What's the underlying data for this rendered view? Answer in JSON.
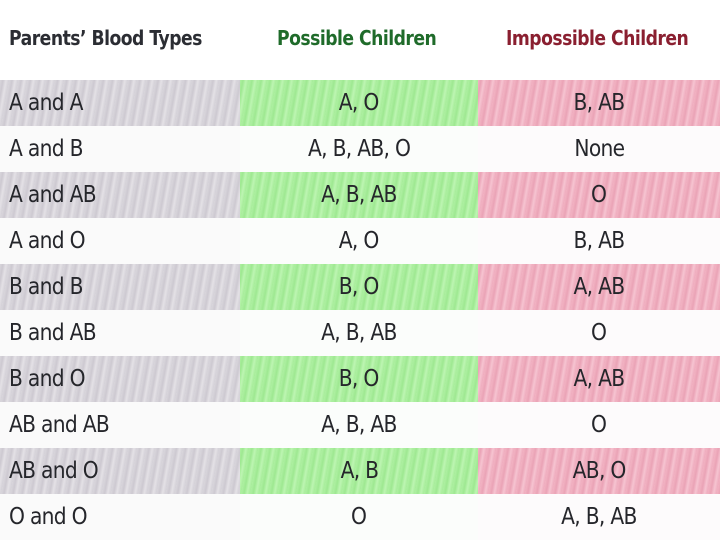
{
  "headers": {
    "parents": "Parents’ Blood Types",
    "possible": "Possible Children",
    "impossible": "Impossible Children"
  },
  "rows": [
    {
      "parents": "A and A",
      "possible": "A, O",
      "impossible": "B, AB"
    },
    {
      "parents": "A and B",
      "possible": "A, B, AB, O",
      "impossible": "None"
    },
    {
      "parents": "A and AB",
      "possible": "A, B, AB",
      "impossible": "O"
    },
    {
      "parents": "A and O",
      "possible": "A, O",
      "impossible": "B, AB"
    },
    {
      "parents": "B and B",
      "possible": "B, O",
      "impossible": "A, AB"
    },
    {
      "parents": "B and AB",
      "possible": "A, B, AB",
      "impossible": "O"
    },
    {
      "parents": "B and O",
      "possible": "B, O",
      "impossible": "A, AB"
    },
    {
      "parents": "AB and AB",
      "possible": "A, B, AB",
      "impossible": "O"
    },
    {
      "parents": "AB and O",
      "possible": "A, B",
      "impossible": "AB, O"
    },
    {
      "parents": "O and O",
      "possible": "O",
      "impossible": "A, B, AB"
    }
  ],
  "colors": {
    "parents_shade": "#d6d3da",
    "possible_shade": "#a8ee9b",
    "impossible_shade": "#f0adbf",
    "possible_header": "#1f6b2a",
    "impossible_header": "#8a1f30"
  }
}
